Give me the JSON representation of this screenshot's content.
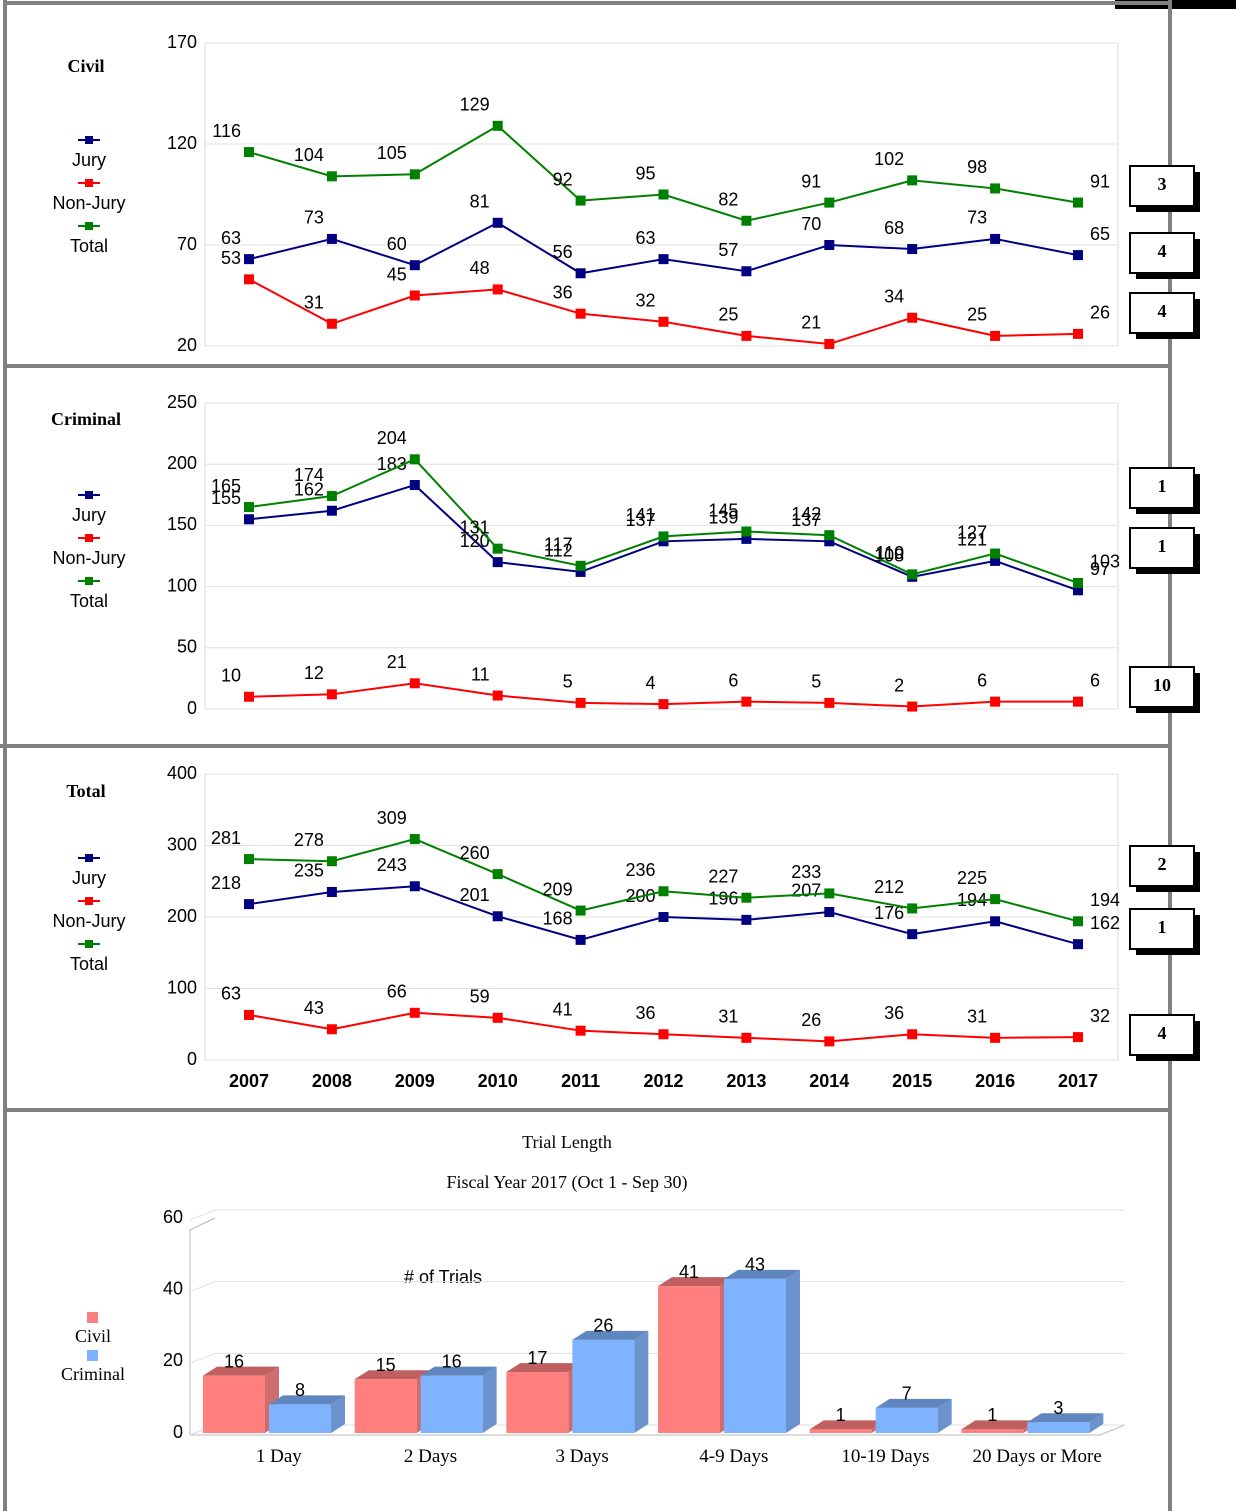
{
  "chart_data": [
    {
      "type": "line",
      "title": "Civil",
      "ylim": [
        20,
        170
      ],
      "yticks": [
        20,
        70,
        120,
        170
      ],
      "grid": true,
      "annotations": [
        3,
        4,
        4
      ],
      "series": [
        {
          "name": "Jury",
          "color": "#000080",
          "values": [
            63,
            73,
            60,
            81,
            56,
            63,
            57,
            70,
            68,
            73,
            65
          ]
        },
        {
          "name": "Non-Jury",
          "color": "#ff0000",
          "values": [
            53,
            31,
            45,
            48,
            36,
            32,
            25,
            21,
            34,
            25,
            26
          ]
        },
        {
          "name": "Total",
          "color": "#008000",
          "values": [
            116,
            104,
            105,
            129,
            92,
            95,
            82,
            91,
            102,
            98,
            91
          ]
        }
      ]
    },
    {
      "type": "line",
      "title": "Criminal",
      "ylim": [
        0,
        250
      ],
      "yticks": [
        0,
        50,
        100,
        150,
        200,
        250
      ],
      "grid": true,
      "annotations": [
        1,
        1,
        10
      ],
      "series": [
        {
          "name": "Jury",
          "color": "#000080",
          "values": [
            155,
            162,
            183,
            120,
            112,
            137,
            139,
            137,
            108,
            121,
            97
          ]
        },
        {
          "name": "Non-Jury",
          "color": "#ff0000",
          "values": [
            10,
            12,
            21,
            11,
            5,
            4,
            6,
            5,
            2,
            6,
            6
          ]
        },
        {
          "name": "Total",
          "color": "#008000",
          "values": [
            165,
            174,
            204,
            131,
            117,
            141,
            145,
            142,
            110,
            127,
            103
          ]
        }
      ]
    },
    {
      "type": "line",
      "title": "Total",
      "ylim": [
        0,
        400
      ],
      "yticks": [
        0,
        100,
        200,
        300,
        400
      ],
      "grid": true,
      "annotations": [
        2,
        1,
        4
      ],
      "categories": [
        "2007",
        "2008",
        "2009",
        "2010",
        "2011",
        "2012",
        "2013",
        "2014",
        "2015",
        "2016",
        "2017"
      ],
      "series": [
        {
          "name": "Jury",
          "color": "#000080",
          "values": [
            218,
            235,
            243,
            201,
            168,
            200,
            196,
            207,
            176,
            194,
            162
          ]
        },
        {
          "name": "Non-Jury",
          "color": "#ff0000",
          "values": [
            63,
            43,
            66,
            59,
            41,
            36,
            31,
            26,
            36,
            31,
            32
          ]
        },
        {
          "name": "Total",
          "color": "#008000",
          "values": [
            281,
            278,
            309,
            260,
            209,
            236,
            227,
            233,
            212,
            225,
            194
          ]
        }
      ]
    },
    {
      "type": "bar3d",
      "title": "Trial Length",
      "subtitle": "Fiscal Year 2017 (Oct 1 - Sep 30)",
      "annotation": "# of Trials",
      "ylim": [
        0,
        60
      ],
      "yticks": [
        0,
        20,
        40,
        60
      ],
      "grid": true,
      "categories": [
        "1 Day",
        "2 Days",
        "3 Days",
        "4-9 Days",
        "10-19 Days",
        "20 Days or More"
      ],
      "series": [
        {
          "name": "Civil",
          "color": "#ff7f7f",
          "values": [
            16,
            15,
            17,
            41,
            1,
            1
          ]
        },
        {
          "name": "Criminal",
          "color": "#7fb2ff",
          "values": [
            8,
            16,
            26,
            43,
            7,
            3
          ]
        }
      ]
    }
  ]
}
